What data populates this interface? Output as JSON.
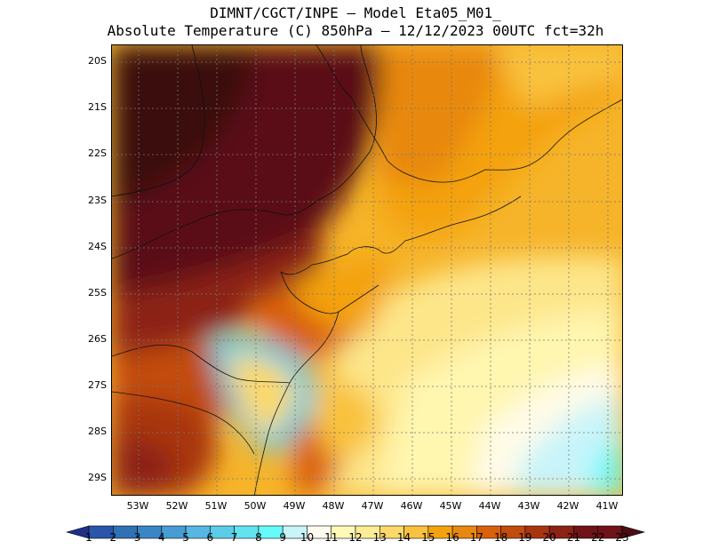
{
  "title": {
    "line1": "DIMNT/CGCT/INPE –  Model Eta05_M01_",
    "line2": "Absolute Temperature (C) 850hPa –  12/12/2023 00UTC fct=32h"
  },
  "axes": {
    "lat_labels": [
      "20S",
      "21S",
      "22S",
      "23S",
      "24S",
      "25S",
      "26S",
      "27S",
      "28S",
      "29S"
    ],
    "lon_labels": [
      "53W",
      "52W",
      "51W",
      "50W",
      "49W",
      "48W",
      "47W",
      "46W",
      "45W",
      "44W",
      "43W",
      "42W",
      "41W"
    ]
  },
  "colorbar": {
    "labels": [
      "1",
      "2",
      "3",
      "4",
      "5",
      "6",
      "7",
      "8",
      "9",
      "10",
      "11",
      "12",
      "13",
      "14",
      "15",
      "16",
      "17",
      "18",
      "19",
      "20",
      "21",
      "22",
      "23"
    ],
    "colors": [
      "#1f2f8a",
      "#2a55a8",
      "#3070b5",
      "#3a86c4",
      "#469cd3",
      "#56b7e2",
      "#5ccde8",
      "#62e3f0",
      "#66fafa",
      "#c8f4fa",
      "#fefcee",
      "#fff9b8",
      "#fdec96",
      "#fcd96a",
      "#f9c23e",
      "#f4a20e",
      "#e88810",
      "#d9610b",
      "#c24c0d",
      "#a83510",
      "#8c2214",
      "#701218",
      "#4a0e12"
    ]
  }
}
